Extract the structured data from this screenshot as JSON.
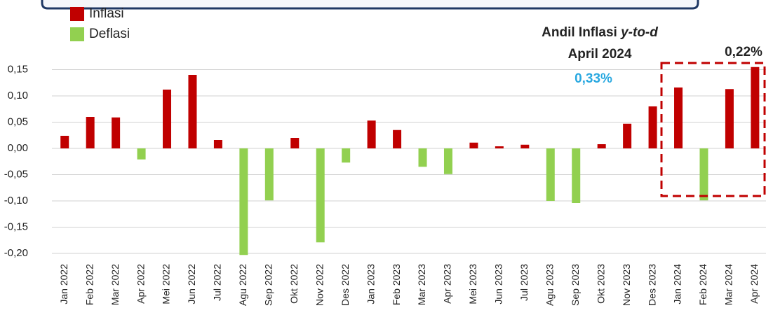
{
  "chart_data": {
    "type": "bar",
    "categories": [
      "Jan 2022",
      "Feb 2022",
      "Mar 2022",
      "Apr 2022",
      "Mei 2022",
      "Jun 2022",
      "Jul 2022",
      "Agu 2022",
      "Sep 2022",
      "Okt 2022",
      "Nov 2022",
      "Des 2022",
      "Jan 2023",
      "Feb 2023",
      "Mar 2023",
      "Apr 2023",
      "Mei 2023",
      "Jun 2023",
      "Jul 2023",
      "Agu 2023",
      "Sep 2023",
      "Okt 2023",
      "Nov 2023",
      "Des 2023",
      "Jan 2024",
      "Feb 2024",
      "Mar 2024",
      "Apr 2024"
    ],
    "values": [
      0.024,
      0.06,
      0.059,
      -0.021,
      0.112,
      0.14,
      0.016,
      -0.203,
      -0.099,
      0.02,
      -0.179,
      -0.027,
      0.053,
      0.035,
      -0.035,
      -0.049,
      0.011,
      0.004,
      0.007,
      -0.1,
      -0.104,
      0.008,
      0.047,
      0.08,
      0.116,
      -0.099,
      0.113,
      0.155
    ],
    "legend": [
      {
        "name": "Inflasi",
        "color": "#c00000"
      },
      {
        "name": "Deflasi",
        "color": "#92d050"
      }
    ],
    "ylim": [
      -0.2,
      0.16
    ],
    "yticks": [
      {
        "value": -0.2,
        "label": "-0,20"
      },
      {
        "value": -0.15,
        "label": "-0,15"
      },
      {
        "value": -0.1,
        "label": "-0,10"
      },
      {
        "value": -0.05,
        "label": "-0,05"
      },
      {
        "value": 0,
        "label": "0,00"
      },
      {
        "value": 0.05,
        "label": "0,05"
      },
      {
        "value": 0.1,
        "label": "0,10"
      },
      {
        "value": 0.15,
        "label": "0,15"
      }
    ],
    "grid": true,
    "annotations": {
      "title_prefix": "Andil Inflasi ",
      "title_italic": "y-to-d",
      "period": "April 2024",
      "ytd": "0,33%",
      "box_value": "0,22%"
    }
  }
}
